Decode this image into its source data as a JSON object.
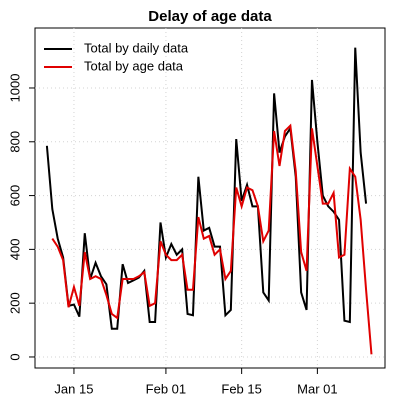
{
  "chart_data": {
    "type": "line",
    "title": "Delay of age data",
    "xlim": [
      7.8,
      72.5
    ],
    "ylim": [
      -41,
      1223
    ],
    "xticks": [
      {
        "value": 15,
        "label": "Jan 15"
      },
      {
        "value": 32,
        "label": "Feb 01"
      },
      {
        "value": 46,
        "label": "Feb 15"
      },
      {
        "value": 60,
        "label": "Mar 01"
      }
    ],
    "yticks": [
      0,
      200,
      400,
      600,
      800,
      1000
    ],
    "grid": true,
    "legend": "top-left",
    "series": [
      {
        "name": "Total by daily data",
        "color": "#000000",
        "x": [
          10,
          11,
          12,
          13,
          14,
          15,
          16,
          17,
          18,
          19,
          20,
          21,
          22,
          23,
          24,
          25,
          26,
          27,
          28,
          29,
          30,
          31,
          32,
          33,
          34,
          35,
          36,
          37,
          38,
          39,
          40,
          41,
          42,
          43,
          44,
          45,
          46,
          47,
          48,
          49,
          50,
          51,
          52,
          53,
          54,
          55,
          56,
          57,
          58,
          59,
          60,
          61,
          62,
          63,
          64,
          65,
          66,
          67,
          68,
          69
        ],
        "values": [
          785,
          550,
          440,
          370,
          190,
          195,
          150,
          460,
          290,
          350,
          300,
          270,
          105,
          105,
          345,
          275,
          285,
          295,
          320,
          130,
          130,
          500,
          370,
          420,
          380,
          400,
          160,
          155,
          670,
          470,
          480,
          410,
          410,
          155,
          175,
          810,
          580,
          640,
          560,
          560,
          240,
          210,
          980,
          760,
          820,
          850,
          670,
          240,
          175,
          1030,
          800,
          600,
          560,
          540,
          510,
          135,
          130,
          1150,
          760,
          570
        ]
      },
      {
        "name": "Total by age data",
        "color": "#e00000",
        "x": [
          11,
          12,
          13,
          14,
          15,
          16,
          17,
          18,
          19,
          20,
          21,
          22,
          23,
          24,
          25,
          26,
          27,
          28,
          29,
          30,
          31,
          32,
          33,
          34,
          35,
          36,
          37,
          38,
          39,
          40,
          41,
          42,
          43,
          44,
          45,
          46,
          47,
          48,
          49,
          50,
          51,
          52,
          53,
          54,
          55,
          56,
          57,
          58,
          59,
          60,
          61,
          62,
          63,
          64,
          65,
          66,
          67,
          68,
          69,
          70
        ],
        "values": [
          440,
          410,
          360,
          185,
          260,
          190,
          390,
          290,
          300,
          290,
          230,
          160,
          145,
          290,
          290,
          290,
          300,
          315,
          190,
          200,
          430,
          380,
          360,
          360,
          380,
          250,
          250,
          520,
          440,
          450,
          380,
          400,
          290,
          320,
          630,
          560,
          630,
          620,
          560,
          430,
          470,
          840,
          710,
          840,
          860,
          690,
          390,
          320,
          850,
          710,
          570,
          570,
          610,
          370,
          380,
          700,
          670,
          510,
          250,
          10
        ]
      }
    ]
  }
}
